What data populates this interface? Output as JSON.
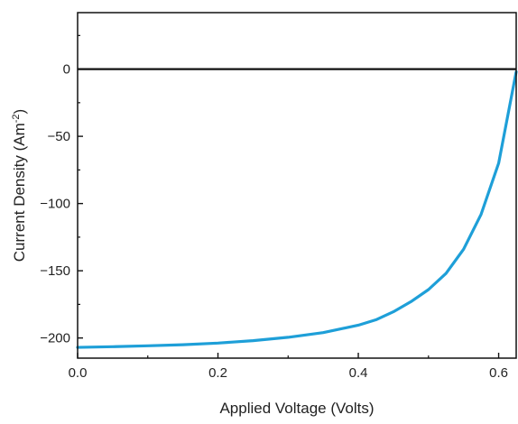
{
  "chart_data": {
    "type": "line",
    "title": "",
    "xlabel": "Applied Voltage (Volts)",
    "ylabel_main": "Current Density (Am",
    "ylabel_sup": "-2",
    "ylabel_close": ")",
    "xlim": [
      0.0,
      0.625
    ],
    "ylim": [
      -215,
      42
    ],
    "x_ticks": [
      0.0,
      0.2,
      0.4,
      0.6
    ],
    "x_tick_labels": [
      "0.0",
      "0.2",
      "0.4",
      "0.6"
    ],
    "y_ticks": [
      0,
      -50,
      -100,
      -150,
      -200
    ],
    "y_tick_labels": [
      "0",
      "−50",
      "−100",
      "−150",
      "−200"
    ],
    "reference_line_y": 0,
    "reference_line_color": "#111111",
    "grid": false,
    "series": [
      {
        "color": "#1e9fd8",
        "x": [
          0.0,
          0.05,
          0.1,
          0.15,
          0.2,
          0.25,
          0.3,
          0.35,
          0.4,
          0.425,
          0.45,
          0.475,
          0.5,
          0.525,
          0.55,
          0.575,
          0.6,
          0.625
        ],
        "y": [
          -207,
          -206.5,
          -205.8,
          -205,
          -203.8,
          -202,
          -199.5,
          -196,
          -190.5,
          -186.5,
          -180.5,
          -173,
          -164,
          -152,
          -134,
          -108,
          -70,
          -2
        ]
      }
    ]
  }
}
